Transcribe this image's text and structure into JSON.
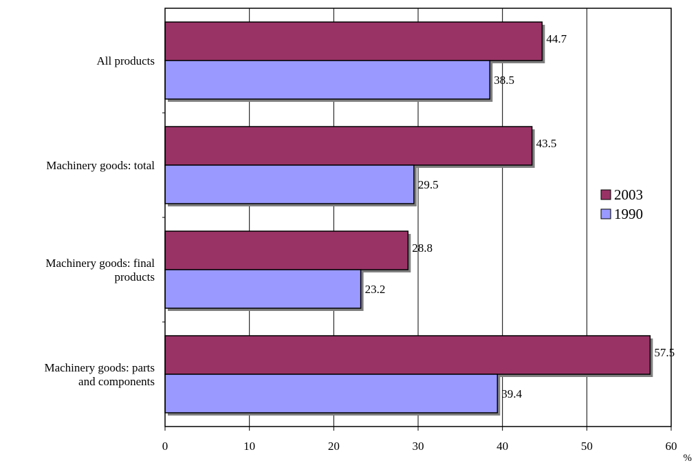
{
  "chart_data": {
    "type": "bar",
    "orientation": "horizontal",
    "categories": [
      [
        "All products"
      ],
      [
        "Machinery goods: total"
      ],
      [
        "Machinery goods: final",
        "products"
      ],
      [
        "Machinery goods: parts",
        "and components"
      ]
    ],
    "series": [
      {
        "name": "2003",
        "color": "#993366",
        "values": [
          44.7,
          43.5,
          28.8,
          57.5
        ]
      },
      {
        "name": "1990",
        "color": "#9999ff",
        "values": [
          38.5,
          29.5,
          23.2,
          39.4
        ]
      }
    ],
    "xlim": [
      0,
      60
    ],
    "xticks": [
      0,
      10,
      20,
      30,
      40,
      50,
      60
    ],
    "xunit": "%",
    "grid": true,
    "legend_position": "right"
  }
}
